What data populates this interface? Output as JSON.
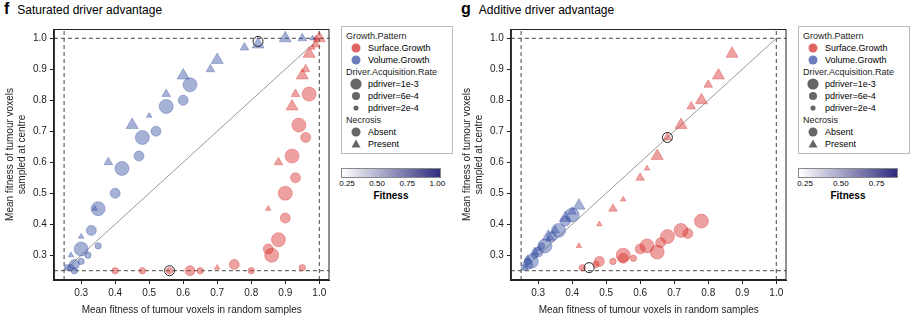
{
  "chart_data": [
    {
      "type": "scatter",
      "panel": "f",
      "title": "Saturated driver advantage",
      "x_label": "Mean fitness of tumour voxels in random samples",
      "y_label": [
        "Mean fitness of tumour voxels",
        "sampled at centre"
      ],
      "xlim": [
        0.22,
        1.03
      ],
      "ylim": [
        0.22,
        1.03
      ],
      "xticks": [
        0.3,
        0.4,
        0.5,
        0.6,
        0.7,
        0.8,
        0.9,
        {
          "value": 1,
          "label": "1.0"
        }
      ],
      "yticks": [
        0.3,
        0.4,
        0.5,
        0.6,
        0.7,
        0.8,
        0.9,
        {
          "value": 1,
          "label": "1.0"
        }
      ],
      "grid": false,
      "legend": "right",
      "legend_groups": [
        {
          "title": "Growth.Pattern",
          "entries": [
            {
              "label": "Surface.Growth",
              "color": "#d7302f"
            },
            {
              "label": "Volume.Growth",
              "color": "#3a53a4"
            }
          ]
        },
        {
          "title": "Driver.Acquisition.Rate",
          "entries": [
            {
              "label": "pdriver=1e-3"
            },
            {
              "label": "pdriver=6e-4"
            },
            {
              "label": "pdriver=2e-4"
            }
          ]
        },
        {
          "title": "Necrosis",
          "entries": [
            {
              "label": "Absent",
              "marker": "circle"
            },
            {
              "label": "Present",
              "marker": "triangle"
            }
          ]
        }
      ],
      "series": [
        {
          "growth_pattern": "Volume.Growth",
          "driver_acquisition_rate": "pdriver=1e-3",
          "necrosis": "Absent",
          "x": [
            0.3,
            0.35,
            0.42,
            0.48,
            0.55,
            0.62
          ],
          "y": [
            0.32,
            0.45,
            0.58,
            0.68,
            0.78,
            0.85
          ]
        },
        {
          "growth_pattern": "Volume.Growth",
          "driver_acquisition_rate": "pdriver=6e-4",
          "necrosis": "Absent",
          "x": [
            0.28,
            0.33,
            0.4,
            0.47,
            0.52,
            0.6
          ],
          "y": [
            0.27,
            0.38,
            0.5,
            0.62,
            0.7,
            0.8
          ]
        },
        {
          "growth_pattern": "Volume.Growth",
          "driver_acquisition_rate": "pdriver=2e-4",
          "necrosis": "Absent",
          "x": [
            0.26,
            0.28,
            0.3,
            0.32,
            0.27,
            0.35
          ],
          "y": [
            0.26,
            0.25,
            0.28,
            0.3,
            0.26,
            0.33
          ]
        },
        {
          "growth_pattern": "Volume.Growth",
          "driver_acquisition_rate": "pdriver=1e-3",
          "necrosis": "Present",
          "x": [
            0.45,
            0.6,
            0.7,
            0.82,
            0.9
          ],
          "y": [
            0.72,
            0.88,
            0.93,
            0.98,
            1.0
          ]
        },
        {
          "growth_pattern": "Volume.Growth",
          "driver_acquisition_rate": "pdriver=6e-4",
          "necrosis": "Present",
          "x": [
            0.38,
            0.55,
            0.68,
            0.78,
            0.95
          ],
          "y": [
            0.6,
            0.82,
            0.9,
            0.97,
            1.0
          ]
        },
        {
          "growth_pattern": "Volume.Growth",
          "driver_acquisition_rate": "pdriver=2e-4",
          "necrosis": "Present",
          "x": [
            0.27,
            0.3,
            0.34,
            0.5,
            0.98
          ],
          "y": [
            0.3,
            0.36,
            0.45,
            0.75,
            1.0
          ]
        },
        {
          "growth_pattern": "Surface.Growth",
          "driver_acquisition_rate": "pdriver=1e-3",
          "necrosis": "Absent",
          "x": [
            0.88,
            0.9,
            0.92,
            0.94,
            0.97,
            0.86
          ],
          "y": [
            0.35,
            0.5,
            0.62,
            0.72,
            0.82,
            0.3
          ]
        },
        {
          "growth_pattern": "Surface.Growth",
          "driver_acquisition_rate": "pdriver=6e-4",
          "necrosis": "Absent",
          "x": [
            0.62,
            0.75,
            0.85,
            0.9,
            0.93,
            0.96
          ],
          "y": [
            0.25,
            0.27,
            0.32,
            0.42,
            0.55,
            0.68
          ]
        },
        {
          "growth_pattern": "Surface.Growth",
          "driver_acquisition_rate": "pdriver=2e-4",
          "necrosis": "Absent",
          "x": [
            0.4,
            0.48,
            0.56,
            0.65,
            0.8,
            0.95
          ],
          "y": [
            0.25,
            0.25,
            0.25,
            0.25,
            0.25,
            0.26
          ]
        },
        {
          "growth_pattern": "Surface.Growth",
          "driver_acquisition_rate": "pdriver=1e-3",
          "necrosis": "Present",
          "x": [
            0.92,
            0.95,
            0.97,
            1.0
          ],
          "y": [
            0.78,
            0.88,
            0.95,
            1.0
          ]
        },
        {
          "growth_pattern": "Surface.Growth",
          "driver_acquisition_rate": "pdriver=6e-4",
          "necrosis": "Present",
          "x": [
            0.88,
            0.93,
            0.96,
            0.99
          ],
          "y": [
            0.6,
            0.82,
            0.9,
            0.98
          ]
        },
        {
          "growth_pattern": "Surface.Growth",
          "driver_acquisition_rate": "pdriver=2e-4",
          "necrosis": "Present",
          "x": [
            0.7,
            0.85,
            0.98,
            0.99
          ],
          "y": [
            0.26,
            0.45,
            0.97,
            1.0
          ]
        }
      ],
      "reference_lines": [
        {
          "x": [
            0.25,
            1
          ],
          "y": [
            0.25,
            1
          ],
          "line_style": "solid",
          "color": "#999999"
        },
        {
          "x": [
            0.25,
            0.25
          ],
          "y": [
            0.22,
            1.03
          ],
          "line_style": "dashed",
          "color": "#444444"
        },
        {
          "x": [
            1,
            1
          ],
          "y": [
            0.22,
            1.03
          ],
          "line_style": "dashed",
          "color": "#444444"
        },
        {
          "x": [
            0.22,
            1.03
          ],
          "y": [
            0.25,
            0.25
          ],
          "line_style": "dashed",
          "color": "#444444"
        },
        {
          "x": [
            0.22,
            1.03
          ],
          "y": [
            1,
            1
          ],
          "line_style": "dashed",
          "color": "#444444"
        }
      ],
      "highlighted_points": {
        "x": [
          0.82,
          0.56
        ],
        "y": [
          0.99,
          0.25
        ]
      },
      "colorbar": {
        "label": "Fitness",
        "range": [
          0.2,
          1.03
        ],
        "colors": [
          "#ffffff",
          "#2e2d7e"
        ],
        "ticks": [
          0.25,
          {
            "value": 0.5,
            "label": "0.50"
          },
          0.75,
          {
            "value": 1,
            "label": "1.00"
          }
        ]
      }
    },
    {
      "type": "scatter",
      "panel": "g",
      "title": "Additive driver advantage",
      "x_label": "Mean fitness of tumour voxels in random samples",
      "y_label": [
        "Mean fitness of tumour voxels",
        "sampled at centre"
      ],
      "xlim": [
        0.22,
        1.03
      ],
      "ylim": [
        0.22,
        1.03
      ],
      "xticks": [
        0.3,
        0.4,
        0.5,
        0.6,
        0.7,
        0.8,
        0.9,
        {
          "value": 1,
          "label": "1.0"
        }
      ],
      "yticks": [
        0.3,
        0.4,
        0.5,
        0.6,
        0.7,
        0.8,
        0.9,
        {
          "value": 1,
          "label": "1.0"
        }
      ],
      "grid": false,
      "legend": "right",
      "legend_groups": [
        {
          "title": "Growth.Pattern",
          "entries": [
            {
              "label": "Surface.Growth",
              "color": "#d7302f"
            },
            {
              "label": "Volume.Growth",
              "color": "#3a53a4"
            }
          ]
        },
        {
          "title": "Driver.Acquisition.Rate",
          "entries": [
            {
              "label": "pdriver=1e-3"
            },
            {
              "label": "pdriver=6e-4"
            },
            {
              "label": "pdriver=2e-4"
            }
          ]
        },
        {
          "title": "Necrosis",
          "entries": [
            {
              "label": "Absent",
              "marker": "circle"
            },
            {
              "label": "Present",
              "marker": "triangle"
            }
          ]
        }
      ],
      "series": [
        {
          "growth_pattern": "Volume.Growth",
          "driver_acquisition_rate": "pdriver=1e-3",
          "necrosis": "Absent",
          "x": [
            0.28,
            0.32,
            0.36,
            0.4
          ],
          "y": [
            0.28,
            0.33,
            0.38,
            0.43
          ]
        },
        {
          "growth_pattern": "Volume.Growth",
          "driver_acquisition_rate": "pdriver=6e-4",
          "necrosis": "Absent",
          "x": [
            0.27,
            0.3,
            0.34,
            0.38
          ],
          "y": [
            0.27,
            0.31,
            0.36,
            0.41
          ]
        },
        {
          "growth_pattern": "Volume.Growth",
          "driver_acquisition_rate": "pdriver=2e-4",
          "necrosis": "Absent",
          "x": [
            0.26,
            0.27,
            0.29,
            0.31
          ],
          "y": [
            0.26,
            0.28,
            0.3,
            0.33
          ]
        },
        {
          "growth_pattern": "Volume.Growth",
          "driver_acquisition_rate": "pdriver=1e-3",
          "necrosis": "Present",
          "x": [
            0.33,
            0.38,
            0.42
          ],
          "y": [
            0.36,
            0.42,
            0.46
          ]
        },
        {
          "growth_pattern": "Volume.Growth",
          "driver_acquisition_rate": "pdriver=6e-4",
          "necrosis": "Present",
          "x": [
            0.29,
            0.35,
            0.4
          ],
          "y": [
            0.31,
            0.38,
            0.44
          ]
        },
        {
          "growth_pattern": "Volume.Growth",
          "driver_acquisition_rate": "pdriver=2e-4",
          "necrosis": "Present",
          "x": [
            0.27,
            0.3,
            0.33
          ],
          "y": [
            0.29,
            0.32,
            0.35
          ]
        },
        {
          "growth_pattern": "Surface.Growth",
          "driver_acquisition_rate": "pdriver=1e-3",
          "necrosis": "Absent",
          "x": [
            0.55,
            0.62,
            0.68,
            0.72,
            0.78,
            0.65
          ],
          "y": [
            0.3,
            0.33,
            0.36,
            0.38,
            0.41,
            0.31
          ]
        },
        {
          "growth_pattern": "Surface.Growth",
          "driver_acquisition_rate": "pdriver=6e-4",
          "necrosis": "Absent",
          "x": [
            0.48,
            0.55,
            0.6,
            0.66,
            0.74
          ],
          "y": [
            0.28,
            0.29,
            0.32,
            0.34,
            0.37
          ]
        },
        {
          "growth_pattern": "Surface.Growth",
          "driver_acquisition_rate": "pdriver=2e-4",
          "necrosis": "Absent",
          "x": [
            0.43,
            0.47,
            0.52,
            0.58
          ],
          "y": [
            0.26,
            0.27,
            0.28,
            0.29
          ]
        },
        {
          "growth_pattern": "Surface.Growth",
          "driver_acquisition_rate": "pdriver=1e-3",
          "necrosis": "Present",
          "x": [
            0.65,
            0.72,
            0.78,
            0.83,
            0.87
          ],
          "y": [
            0.62,
            0.72,
            0.8,
            0.88,
            0.95
          ]
        },
        {
          "growth_pattern": "Surface.Growth",
          "driver_acquisition_rate": "pdriver=6e-4",
          "necrosis": "Present",
          "x": [
            0.52,
            0.6,
            0.68,
            0.75,
            0.8
          ],
          "y": [
            0.45,
            0.55,
            0.68,
            0.78,
            0.85
          ]
        },
        {
          "growth_pattern": "Surface.Growth",
          "driver_acquisition_rate": "pdriver=2e-4",
          "necrosis": "Present",
          "x": [
            0.42,
            0.48,
            0.55,
            0.62
          ],
          "y": [
            0.33,
            0.4,
            0.48,
            0.58
          ]
        }
      ],
      "reference_lines": [
        {
          "x": [
            0.25,
            1
          ],
          "y": [
            0.25,
            1
          ],
          "line_style": "solid",
          "color": "#999999"
        },
        {
          "x": [
            0.25,
            0.25
          ],
          "y": [
            0.22,
            1.03
          ],
          "line_style": "dashed",
          "color": "#444444"
        },
        {
          "x": [
            1,
            1
          ],
          "y": [
            0.22,
            1.03
          ],
          "line_style": "dashed",
          "color": "#444444"
        },
        {
          "x": [
            0.22,
            1.03
          ],
          "y": [
            0.25,
            0.25
          ],
          "line_style": "dashed",
          "color": "#444444"
        },
        {
          "x": [
            0.22,
            1.03
          ],
          "y": [
            1,
            1
          ],
          "line_style": "dashed",
          "color": "#444444"
        }
      ],
      "highlighted_points": {
        "x": [
          0.68,
          0.45
        ],
        "y": [
          0.68,
          0.26
        ]
      },
      "colorbar": {
        "label": "Fitness",
        "range": [
          0.2,
          0.9
        ],
        "colors": [
          "#ffffff",
          "#2e2d7e"
        ],
        "ticks": [
          0.25,
          {
            "value": 0.5,
            "label": "0.50"
          },
          0.75
        ]
      }
    }
  ]
}
